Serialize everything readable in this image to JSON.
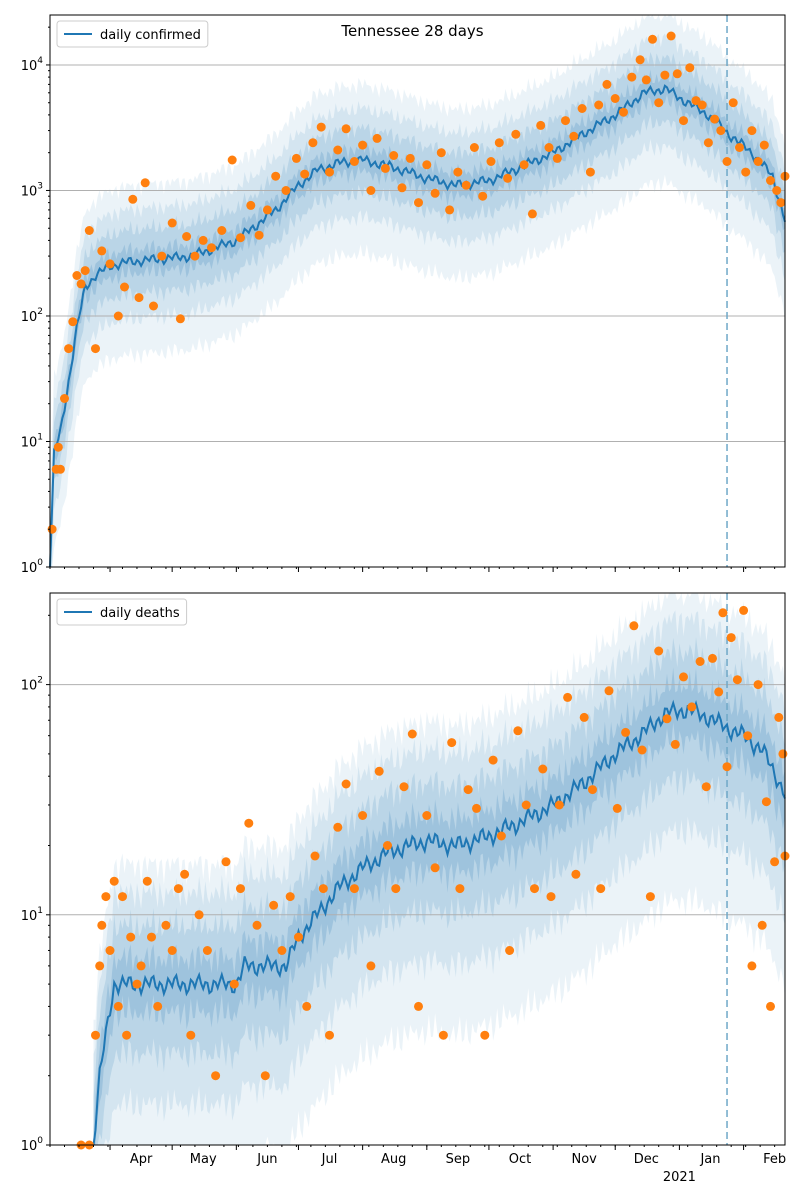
{
  "chart_data": [
    {
      "type": "line",
      "title": "Tennessee 28 days",
      "yscale": "log",
      "ylim": [
        1,
        25000
      ],
      "xlim": [
        "2020-03-03",
        "2021-02-21"
      ],
      "grid": "horizontal",
      "legend": "top-left",
      "ytick_labels": [
        "10^0",
        "10^1",
        "10^2",
        "10^3",
        "10^4"
      ],
      "series": [
        {
          "name": "daily confirmed",
          "color": "#1f77b4"
        }
      ],
      "median_knots": [
        [
          "2020-03-03",
          1
        ],
        [
          "2020-03-05",
          8
        ],
        [
          "2020-03-08",
          12
        ],
        [
          "2020-03-12",
          30
        ],
        [
          "2020-03-16",
          80
        ],
        [
          "2020-03-20",
          170
        ],
        [
          "2020-03-25",
          210
        ],
        [
          "2020-04-01",
          250
        ],
        [
          "2020-04-10",
          270
        ],
        [
          "2020-04-20",
          280
        ],
        [
          "2020-05-01",
          290
        ],
        [
          "2020-05-10",
          300
        ],
        [
          "2020-05-20",
          340
        ],
        [
          "2020-06-01",
          400
        ],
        [
          "2020-06-10",
          520
        ],
        [
          "2020-06-20",
          700
        ],
        [
          "2020-07-01",
          1100
        ],
        [
          "2020-07-10",
          1450
        ],
        [
          "2020-07-20",
          1650
        ],
        [
          "2020-08-01",
          1750
        ],
        [
          "2020-08-15",
          1550
        ],
        [
          "2020-09-01",
          1250
        ],
        [
          "2020-09-15",
          1100
        ],
        [
          "2020-10-01",
          1200
        ],
        [
          "2020-10-15",
          1500
        ],
        [
          "2020-11-01",
          2000
        ],
        [
          "2020-11-15",
          2800
        ],
        [
          "2020-12-01",
          4000
        ],
        [
          "2020-12-15",
          6000
        ],
        [
          "2020-12-25",
          6500
        ],
        [
          "2021-01-05",
          5000
        ],
        [
          "2021-01-15",
          4000
        ],
        [
          "2021-01-25",
          2800
        ],
        [
          "2021-02-05",
          2000
        ],
        [
          "2021-02-15",
          1300
        ],
        [
          "2021-02-21",
          580
        ]
      ],
      "bands": [
        {
          "rel": [
            0.8,
            1.25
          ],
          "opacity": 0.18
        },
        {
          "rel": [
            0.55,
            1.8
          ],
          "opacity": 0.14
        },
        {
          "rel": [
            0.35,
            2.6
          ],
          "opacity": 0.11
        },
        {
          "rel": [
            0.18,
            4.0
          ],
          "opacity": 0.09
        }
      ],
      "observed": [
        [
          "2020-03-04",
          2
        ],
        [
          "2020-03-06",
          6
        ],
        [
          "2020-03-07",
          9
        ],
        [
          "2020-03-08",
          6
        ],
        [
          "2020-03-10",
          22
        ],
        [
          "2020-03-12",
          55
        ],
        [
          "2020-03-14",
          90
        ],
        [
          "2020-03-16",
          210
        ],
        [
          "2020-03-18",
          180
        ],
        [
          "2020-03-20",
          230
        ],
        [
          "2020-03-22",
          480
        ],
        [
          "2020-03-25",
          55
        ],
        [
          "2020-03-28",
          330
        ],
        [
          "2020-04-01",
          260
        ],
        [
          "2020-04-05",
          100
        ],
        [
          "2020-04-08",
          170
        ],
        [
          "2020-04-12",
          850
        ],
        [
          "2020-04-15",
          140
        ],
        [
          "2020-04-18",
          1150
        ],
        [
          "2020-04-22",
          120
        ],
        [
          "2020-04-26",
          300
        ],
        [
          "2020-05-01",
          550
        ],
        [
          "2020-05-05",
          95
        ],
        [
          "2020-05-08",
          430
        ],
        [
          "2020-05-12",
          300
        ],
        [
          "2020-05-16",
          400
        ],
        [
          "2020-05-20",
          350
        ],
        [
          "2020-05-25",
          480
        ],
        [
          "2020-05-30",
          1750
        ],
        [
          "2020-06-03",
          420
        ],
        [
          "2020-06-08",
          760
        ],
        [
          "2020-06-12",
          440
        ],
        [
          "2020-06-16",
          700
        ],
        [
          "2020-06-20",
          1300
        ],
        [
          "2020-06-25",
          1000
        ],
        [
          "2020-06-30",
          1800
        ],
        [
          "2020-07-04",
          1350
        ],
        [
          "2020-07-08",
          2400
        ],
        [
          "2020-07-12",
          3200
        ],
        [
          "2020-07-16",
          1400
        ],
        [
          "2020-07-20",
          2100
        ],
        [
          "2020-07-24",
          3100
        ],
        [
          "2020-07-28",
          1700
        ],
        [
          "2020-08-01",
          2300
        ],
        [
          "2020-08-05",
          1000
        ],
        [
          "2020-08-08",
          2600
        ],
        [
          "2020-08-12",
          1500
        ],
        [
          "2020-08-16",
          1900
        ],
        [
          "2020-08-20",
          1050
        ],
        [
          "2020-08-24",
          1800
        ],
        [
          "2020-08-28",
          800
        ],
        [
          "2020-09-01",
          1600
        ],
        [
          "2020-09-05",
          950
        ],
        [
          "2020-09-08",
          2000
        ],
        [
          "2020-09-12",
          700
        ],
        [
          "2020-09-16",
          1400
        ],
        [
          "2020-09-20",
          1100
        ],
        [
          "2020-09-24",
          2200
        ],
        [
          "2020-09-28",
          900
        ],
        [
          "2020-10-02",
          1700
        ],
        [
          "2020-10-06",
          2400
        ],
        [
          "2020-10-10",
          1250
        ],
        [
          "2020-10-14",
          2800
        ],
        [
          "2020-10-18",
          1600
        ],
        [
          "2020-10-22",
          650
        ],
        [
          "2020-10-26",
          3300
        ],
        [
          "2020-10-30",
          2200
        ],
        [
          "2020-11-03",
          1800
        ],
        [
          "2020-11-07",
          3600
        ],
        [
          "2020-11-11",
          2700
        ],
        [
          "2020-11-15",
          4500
        ],
        [
          "2020-11-19",
          1400
        ],
        [
          "2020-11-23",
          4800
        ],
        [
          "2020-11-27",
          7000
        ],
        [
          "2020-12-01",
          5400
        ],
        [
          "2020-12-05",
          4200
        ],
        [
          "2020-12-09",
          8000
        ],
        [
          "2020-12-13",
          11000
        ],
        [
          "2020-12-16",
          7600
        ],
        [
          "2020-12-19",
          16000
        ],
        [
          "2020-12-22",
          5000
        ],
        [
          "2020-12-25",
          8300
        ],
        [
          "2020-12-28",
          17000
        ],
        [
          "2020-12-31",
          8500
        ],
        [
          "2021-01-03",
          3600
        ],
        [
          "2021-01-06",
          9500
        ],
        [
          "2021-01-09",
          5200
        ],
        [
          "2021-01-12",
          4800
        ],
        [
          "2021-01-15",
          2400
        ],
        [
          "2021-01-18",
          3700
        ],
        [
          "2021-01-21",
          3000
        ],
        [
          "2021-01-24",
          1700
        ],
        [
          "2021-01-27",
          5000
        ],
        [
          "2021-01-30",
          2200
        ],
        [
          "2021-02-02",
          1400
        ],
        [
          "2021-02-05",
          3000
        ],
        [
          "2021-02-08",
          1700
        ],
        [
          "2021-02-11",
          2300
        ],
        [
          "2021-02-14",
          1200
        ],
        [
          "2021-02-17",
          1000
        ],
        [
          "2021-02-19",
          800
        ],
        [
          "2021-02-21",
          1300
        ]
      ]
    },
    {
      "type": "line",
      "yscale": "log",
      "ylim": [
        1,
        250
      ],
      "xlim": [
        "2020-03-03",
        "2021-02-21"
      ],
      "grid": "horizontal",
      "legend": "top-left",
      "ytick_labels": [
        "10^0",
        "10^1",
        "10^2"
      ],
      "series": [
        {
          "name": "daily deaths",
          "color": "#1f77b4"
        }
      ],
      "median_knots": [
        [
          "2020-03-24",
          1
        ],
        [
          "2020-03-27",
          2
        ],
        [
          "2020-03-30",
          3
        ],
        [
          "2020-04-03",
          5
        ],
        [
          "2020-05-01",
          5
        ],
        [
          "2020-06-01",
          5
        ],
        [
          "2020-06-05",
          6
        ],
        [
          "2020-06-25",
          6
        ],
        [
          "2020-07-01",
          8
        ],
        [
          "2020-07-10",
          10
        ],
        [
          "2020-07-20",
          13
        ],
        [
          "2020-08-01",
          16
        ],
        [
          "2020-08-15",
          19
        ],
        [
          "2020-09-01",
          21
        ],
        [
          "2020-09-15",
          20
        ],
        [
          "2020-10-01",
          22
        ],
        [
          "2020-10-15",
          25
        ],
        [
          "2020-11-01",
          30
        ],
        [
          "2020-11-15",
          37
        ],
        [
          "2020-12-01",
          50
        ],
        [
          "2020-12-15",
          62
        ],
        [
          "2020-12-25",
          75
        ],
        [
          "2021-01-05",
          78
        ],
        [
          "2021-01-15",
          72
        ],
        [
          "2021-01-24",
          65
        ],
        [
          "2021-02-01",
          60
        ],
        [
          "2021-02-10",
          52
        ],
        [
          "2021-02-17",
          40
        ],
        [
          "2021-02-21",
          33
        ]
      ],
      "bands": [
        {
          "rel": [
            0.75,
            1.3
          ],
          "opacity": 0.18
        },
        {
          "rel": [
            0.5,
            1.8
          ],
          "opacity": 0.14
        },
        {
          "rel": [
            0.3,
            2.5
          ],
          "opacity": 0.11
        },
        {
          "rel": [
            0.15,
            3.3
          ],
          "opacity": 0.09
        }
      ],
      "observed": [
        [
          "2020-03-18",
          1
        ],
        [
          "2020-03-22",
          1
        ],
        [
          "2020-03-25",
          3
        ],
        [
          "2020-03-27",
          6
        ],
        [
          "2020-03-28",
          9
        ],
        [
          "2020-03-30",
          12
        ],
        [
          "2020-04-01",
          7
        ],
        [
          "2020-04-03",
          14
        ],
        [
          "2020-04-05",
          4
        ],
        [
          "2020-04-07",
          12
        ],
        [
          "2020-04-09",
          3
        ],
        [
          "2020-04-11",
          8
        ],
        [
          "2020-04-14",
          5
        ],
        [
          "2020-04-16",
          6
        ],
        [
          "2020-04-19",
          14
        ],
        [
          "2020-04-21",
          8
        ],
        [
          "2020-04-24",
          4
        ],
        [
          "2020-04-28",
          9
        ],
        [
          "2020-05-01",
          7
        ],
        [
          "2020-05-04",
          13
        ],
        [
          "2020-05-07",
          15
        ],
        [
          "2020-05-10",
          3
        ],
        [
          "2020-05-14",
          10
        ],
        [
          "2020-05-18",
          7
        ],
        [
          "2020-05-22",
          2
        ],
        [
          "2020-05-27",
          17
        ],
        [
          "2020-05-31",
          5
        ],
        [
          "2020-06-03",
          13
        ],
        [
          "2020-06-07",
          25
        ],
        [
          "2020-06-11",
          9
        ],
        [
          "2020-06-15",
          2
        ],
        [
          "2020-06-19",
          11
        ],
        [
          "2020-06-23",
          7
        ],
        [
          "2020-06-27",
          12
        ],
        [
          "2020-07-01",
          8
        ],
        [
          "2020-07-05",
          4
        ],
        [
          "2020-07-09",
          18
        ],
        [
          "2020-07-13",
          13
        ],
        [
          "2020-07-16",
          3
        ],
        [
          "2020-07-20",
          24
        ],
        [
          "2020-07-24",
          37
        ],
        [
          "2020-07-28",
          13
        ],
        [
          "2020-08-01",
          27
        ],
        [
          "2020-08-05",
          6
        ],
        [
          "2020-08-09",
          42
        ],
        [
          "2020-08-13",
          20
        ],
        [
          "2020-08-17",
          13
        ],
        [
          "2020-08-21",
          36
        ],
        [
          "2020-08-25",
          61
        ],
        [
          "2020-08-28",
          4
        ],
        [
          "2020-09-01",
          27
        ],
        [
          "2020-09-05",
          16
        ],
        [
          "2020-09-09",
          3
        ],
        [
          "2020-09-13",
          56
        ],
        [
          "2020-09-17",
          13
        ],
        [
          "2020-09-21",
          35
        ],
        [
          "2020-09-25",
          29
        ],
        [
          "2020-09-29",
          3
        ],
        [
          "2020-10-03",
          47
        ],
        [
          "2020-10-07",
          22
        ],
        [
          "2020-10-11",
          7
        ],
        [
          "2020-10-15",
          63
        ],
        [
          "2020-10-19",
          30
        ],
        [
          "2020-10-23",
          13
        ],
        [
          "2020-10-27",
          43
        ],
        [
          "2020-10-31",
          12
        ],
        [
          "2020-11-04",
          30
        ],
        [
          "2020-11-08",
          88
        ],
        [
          "2020-11-12",
          15
        ],
        [
          "2020-11-16",
          72
        ],
        [
          "2020-11-20",
          35
        ],
        [
          "2020-11-24",
          13
        ],
        [
          "2020-11-28",
          94
        ],
        [
          "2020-12-02",
          29
        ],
        [
          "2020-12-06",
          62
        ],
        [
          "2020-12-10",
          180
        ],
        [
          "2020-12-14",
          52
        ],
        [
          "2020-12-18",
          12
        ],
        [
          "2020-12-22",
          140
        ],
        [
          "2020-12-26",
          71
        ],
        [
          "2020-12-30",
          55
        ],
        [
          "2021-01-03",
          108
        ],
        [
          "2021-01-07",
          80
        ],
        [
          "2021-01-11",
          126
        ],
        [
          "2021-01-14",
          36
        ],
        [
          "2021-01-17",
          130
        ],
        [
          "2021-01-20",
          93
        ],
        [
          "2021-01-22",
          205
        ],
        [
          "2021-01-24",
          44
        ],
        [
          "2021-01-26",
          160
        ],
        [
          "2021-01-29",
          105
        ],
        [
          "2021-02-01",
          210
        ],
        [
          "2021-02-03",
          60
        ],
        [
          "2021-02-05",
          6
        ],
        [
          "2021-02-08",
          100
        ],
        [
          "2021-02-10",
          9
        ],
        [
          "2021-02-12",
          31
        ],
        [
          "2021-02-14",
          4
        ],
        [
          "2021-02-16",
          17
        ],
        [
          "2021-02-18",
          72
        ],
        [
          "2021-02-20",
          50
        ],
        [
          "2021-02-21",
          18
        ]
      ]
    }
  ],
  "shared_x": {
    "tick_dates": [
      "2020-04-01",
      "2020-05-01",
      "2020-06-01",
      "2020-07-01",
      "2020-08-01",
      "2020-09-01",
      "2020-10-01",
      "2020-11-01",
      "2020-12-01",
      "2021-01-01",
      "2021-02-01"
    ],
    "month_labels": [
      "Apr",
      "May",
      "Jun",
      "Jul",
      "Aug",
      "Sep",
      "Oct",
      "Nov",
      "Dec",
      "Jan",
      "Feb"
    ],
    "year_label": "2021",
    "forecast_start": "2021-01-24"
  },
  "colors": {
    "line": "#1f77b4",
    "observed": "#ff7f0e",
    "band": "#1f77b4",
    "forecast_divider": "#6fa8c8",
    "grid": "#b0b0b0"
  }
}
